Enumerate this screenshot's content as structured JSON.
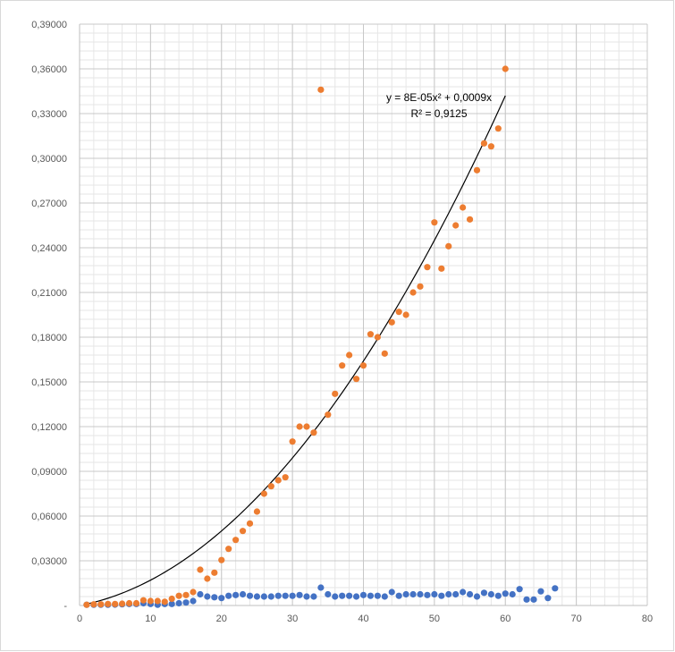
{
  "chart_data": {
    "type": "scatter",
    "title": "",
    "xlabel": "",
    "ylabel": "",
    "xlim": [
      0,
      80
    ],
    "ylim": [
      0,
      0.39
    ],
    "x_ticks": [
      0,
      10,
      20,
      30,
      40,
      50,
      60,
      70,
      80
    ],
    "x_tick_labels": [
      "0",
      "10",
      "20",
      "30",
      "40",
      "50",
      "60",
      "70",
      "80"
    ],
    "y_ticks": [
      0,
      0.03,
      0.06,
      0.09,
      0.12,
      0.15,
      0.18,
      0.21,
      0.24,
      0.27,
      0.3,
      0.33,
      0.36,
      0.39
    ],
    "y_tick_labels": [
      "-",
      "0,03000",
      "0,06000",
      "0,09000",
      "0,12000",
      "0,15000",
      "0,18000",
      "0,21000",
      "0,24000",
      "0,27000",
      "0,30000",
      "0,33000",
      "0,36000",
      "0,39000"
    ],
    "grid": "major and minor",
    "legend": "none",
    "series": [
      {
        "color": "#4472c4",
        "x": [
          1,
          2,
          3,
          4,
          5,
          6,
          7,
          8,
          9,
          10,
          11,
          12,
          13,
          14,
          15,
          16,
          17,
          18,
          19,
          20,
          21,
          22,
          23,
          24,
          25,
          26,
          27,
          28,
          29,
          30,
          31,
          32,
          33,
          34,
          35,
          36,
          37,
          38,
          39,
          40,
          41,
          42,
          43,
          44,
          45,
          46,
          47,
          48,
          49,
          50,
          51,
          52,
          53,
          54,
          55,
          56,
          57,
          58,
          59,
          60,
          61,
          62,
          63,
          64,
          65,
          66,
          67
        ],
        "y": [
          0.0005,
          0.0005,
          0.0005,
          0.0005,
          0.0006,
          0.0008,
          0.001,
          0.001,
          0.0015,
          0.001,
          0.0005,
          0.001,
          0.001,
          0.0015,
          0.002,
          0.003,
          0.0075,
          0.006,
          0.0055,
          0.005,
          0.0065,
          0.007,
          0.0075,
          0.0065,
          0.006,
          0.006,
          0.006,
          0.0065,
          0.0065,
          0.0065,
          0.007,
          0.006,
          0.006,
          0.012,
          0.0075,
          0.006,
          0.0065,
          0.0065,
          0.006,
          0.007,
          0.0065,
          0.0065,
          0.006,
          0.009,
          0.0065,
          0.0075,
          0.0075,
          0.0075,
          0.007,
          0.0075,
          0.0065,
          0.0075,
          0.0075,
          0.009,
          0.0075,
          0.006,
          0.0085,
          0.0075,
          0.0065,
          0.008,
          0.0075,
          0.011,
          0.004,
          0.004,
          0.0095,
          0.005,
          0.0115
        ]
      },
      {
        "color": "#ed7d31",
        "x": [
          1,
          2,
          3,
          4,
          5,
          6,
          7,
          8,
          9,
          10,
          11,
          12,
          13,
          14,
          15,
          16,
          17,
          18,
          19,
          20,
          21,
          22,
          23,
          24,
          25,
          26,
          27,
          28,
          29,
          30,
          31,
          32,
          33,
          34,
          35,
          36,
          37,
          38,
          39,
          40,
          41,
          42,
          43,
          44,
          45,
          46,
          47,
          48,
          49,
          50,
          51,
          52,
          53,
          54,
          55,
          56,
          57,
          58,
          59,
          60
        ],
        "y": [
          0.0005,
          0.0008,
          0.0008,
          0.001,
          0.001,
          0.0012,
          0.0015,
          0.0015,
          0.0035,
          0.003,
          0.003,
          0.0025,
          0.0045,
          0.0065,
          0.007,
          0.009,
          0.024,
          0.018,
          0.022,
          0.0305,
          0.038,
          0.044,
          0.05,
          0.055,
          0.063,
          0.075,
          0.08,
          0.084,
          0.086,
          0.11,
          0.12,
          0.12,
          0.116,
          0.346,
          0.128,
          0.142,
          0.161,
          0.168,
          0.152,
          0.161,
          0.182,
          0.18,
          0.169,
          0.19,
          0.197,
          0.195,
          0.21,
          0.214,
          0.227,
          0.257,
          0.226,
          0.241,
          0.255,
          0.267,
          0.259,
          0.292,
          0.31,
          0.308,
          0.32,
          0.36
        ]
      }
    ],
    "trendline": {
      "type": "polynomial",
      "order": 2,
      "color": "#000000",
      "a2": 8e-05,
      "a1": 0.0009,
      "x_range": [
        1,
        60
      ],
      "equation": "y = 8E-05x² + 0,0009x",
      "r_squared": "R² = 0,9125"
    }
  }
}
